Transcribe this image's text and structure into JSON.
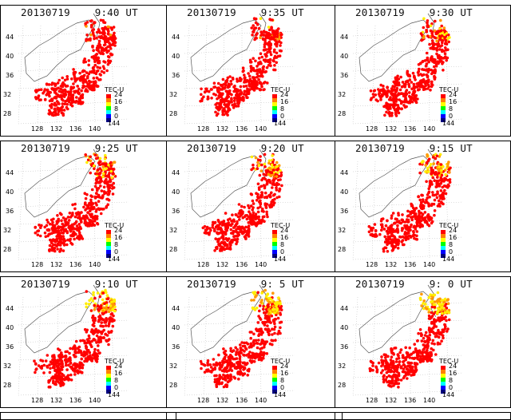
{
  "panels": [
    {
      "date": "20130719",
      "time": "9:40 UT"
    },
    {
      "date": "20130719",
      "time": "9:35 UT"
    },
    {
      "date": "20130719",
      "time": "9:30 UT"
    },
    {
      "date": "20130719",
      "time": "9:25 UT"
    },
    {
      "date": "20130719",
      "time": "9:20 UT"
    },
    {
      "date": "20130719",
      "time": "9:15 UT"
    },
    {
      "date": "20130719",
      "time": "9:10 UT"
    },
    {
      "date": "20130719",
      "time": "9: 5 UT"
    },
    {
      "date": "20130719",
      "time": "9: 0 UT"
    }
  ],
  "colorbar": {
    "title": "TEC-U",
    "ticks": [
      "24",
      "16",
      "8",
      "0"
    ],
    "colors": [
      "#ff0000",
      "#ff8000",
      "#ffff00",
      "#00ff00",
      "#00ffff",
      "#0000ff",
      "#000080"
    ]
  },
  "axes": {
    "lat_labels": [
      "44",
      "40",
      "36",
      "32",
      "28"
    ],
    "lon_labels": [
      "128",
      "132",
      "136",
      "140",
      "144"
    ]
  },
  "colors": {
    "tec_high": "#ff0000",
    "tec_mid": "#ff9900",
    "tec_low": "#ffee00",
    "coast": "#555555"
  }
}
